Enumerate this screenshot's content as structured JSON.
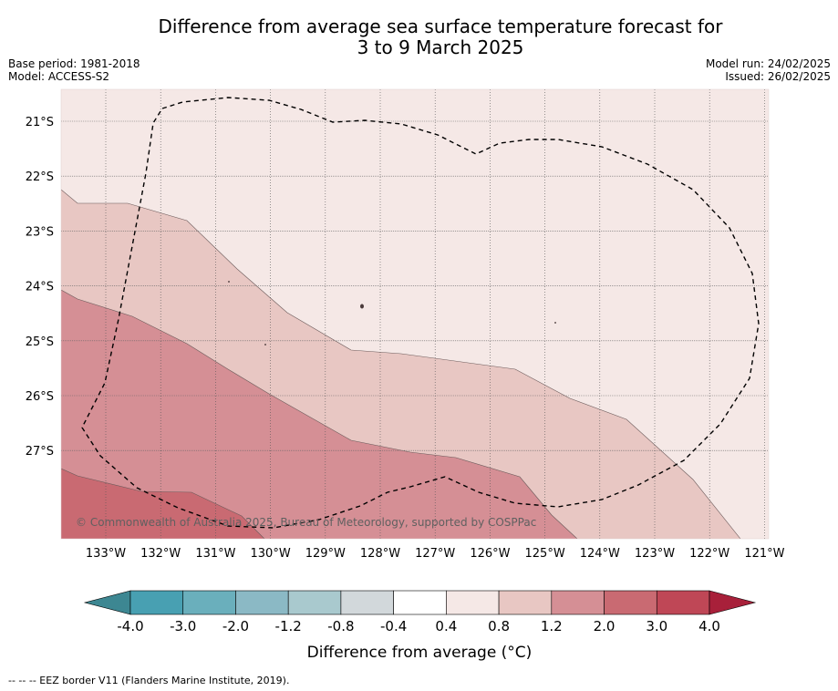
{
  "title_line1": "Difference from average sea surface temperature forecast for",
  "title_line2": "3 to 9 March 2025",
  "base_period": "Base period: 1981-2018",
  "model": "Model: ACCESS-S2",
  "model_run": "Model run: 24/02/2025",
  "issued": "Issued: 26/02/2025",
  "attribution": "© Commonwealth of Australia 2025, Bureau of Meteorology, supported by COSPPac",
  "footer": "-- -- -- EEZ border V11 (Flanders Marine Institute, 2019).",
  "lat_labels": [
    "21°S",
    "22°S",
    "23°S",
    "24°S",
    "25°S",
    "26°S",
    "27°S"
  ],
  "lon_labels": [
    "133°W",
    "132°W",
    "131°W",
    "130°W",
    "129°W",
    "128°W",
    "127°W",
    "126°W",
    "125°W",
    "124°W",
    "123°W",
    "122°W",
    "121°W"
  ],
  "colorbar": {
    "title": "Difference from average (°C)",
    "ticks": [
      "-4.0",
      "-3.0",
      "-2.0",
      "-1.2",
      "-0.8",
      "-0.4",
      "0.4",
      "0.8",
      "1.2",
      "2.0",
      "3.0",
      "4.0"
    ],
    "colors": [
      "#48a0b2",
      "#6aafbc",
      "#8bb9c5",
      "#a9c9ce",
      "#d2d8db",
      "#ffffff",
      "#f5e8e6",
      "#e8c7c3",
      "#d58f95",
      "#c96a72",
      "#bf4756"
    ],
    "under_color": "#3d8792",
    "over_color": "#a8203a"
  },
  "map_colors": {
    "background": "#f5e8e6",
    "band_0_8_to_1_2": "#e8c7c3",
    "band_1_2_to_2_0": "#d58f95",
    "band_2_0_to_3_0": "#c96a72"
  }
}
